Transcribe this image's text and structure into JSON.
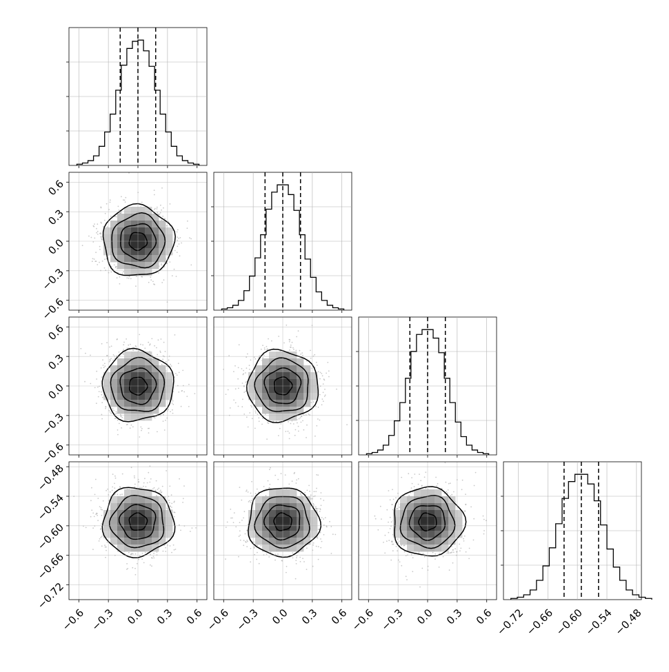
{
  "chart_data": {
    "type": "corner",
    "dimensions": 4,
    "grid": true,
    "histogram_style": "step",
    "quantile_lines": "dashed",
    "axes": [
      {
        "range": [
          -0.7,
          0.7
        ],
        "ticks": [
          -0.6,
          -0.3,
          0.0,
          0.3,
          0.6
        ],
        "tick_labels": [
          "−0.6",
          "−0.3",
          "0.0",
          "0.3",
          "0.6"
        ],
        "quantiles": [
          -0.18,
          0.0,
          0.18
        ],
        "mean": 0.0,
        "sd": 0.18
      },
      {
        "range": [
          -0.7,
          0.7
        ],
        "ticks": [
          -0.6,
          -0.3,
          0.0,
          0.3,
          0.6
        ],
        "tick_labels": [
          "−0.6",
          "−0.3",
          "0.0",
          "0.3",
          "0.6"
        ],
        "quantiles": [
          -0.18,
          0.0,
          0.18
        ],
        "mean": 0.0,
        "sd": 0.18
      },
      {
        "range": [
          -0.7,
          0.7
        ],
        "ticks": [
          -0.6,
          -0.3,
          0.0,
          0.3,
          0.6
        ],
        "tick_labels": [
          "−0.6",
          "−0.3",
          "0.0",
          "0.3",
          "0.6"
        ],
        "quantiles": [
          -0.18,
          0.0,
          0.18
        ],
        "mean": 0.0,
        "sd": 0.18
      },
      {
        "range": [
          -0.75,
          -0.47
        ],
        "ticks": [
          -0.72,
          -0.66,
          -0.6,
          -0.54,
          -0.48
        ],
        "tick_labels": [
          "−0.72",
          "−0.66",
          "−0.60",
          "−0.54",
          "−0.48"
        ],
        "quantiles": [
          -0.627,
          -0.592,
          -0.557
        ],
        "mean": -0.592,
        "sd": 0.035
      }
    ],
    "histograms": [
      {
        "variable": 0,
        "bin_edges_range": [
          -0.62,
          0.62
        ],
        "counts": [
          1,
          2,
          4,
          8,
          16,
          28,
          43,
          63,
          84,
          98,
          104,
          105,
          96,
          83,
          63,
          43,
          28,
          16,
          8,
          4,
          2,
          1
        ]
      },
      {
        "variable": 1,
        "bin_edges_range": [
          -0.62,
          0.62
        ],
        "counts": [
          1,
          2,
          4,
          8,
          16,
          28,
          43,
          62,
          83,
          97,
          103,
          103,
          95,
          82,
          62,
          42,
          27,
          15,
          8,
          4,
          2,
          1
        ]
      },
      {
        "variable": 2,
        "bin_edges_range": [
          -0.62,
          0.62
        ],
        "counts": [
          1,
          2,
          4,
          8,
          16,
          28,
          43,
          63,
          85,
          99,
          103,
          103,
          96,
          84,
          63,
          43,
          27,
          15,
          8,
          4,
          2,
          1
        ]
      },
      {
        "variable": 3,
        "bin_edges_range": [
          -0.735,
          -0.449
        ],
        "counts": [
          1,
          2,
          4,
          8,
          16,
          28,
          43,
          63,
          84,
          98,
          104,
          104,
          96,
          82,
          62,
          42,
          27,
          16,
          8,
          4,
          2,
          1
        ]
      }
    ],
    "density_panels": [
      {
        "x_var": 0,
        "y_var": 1,
        "center": [
          0.0,
          0.0
        ],
        "sd": [
          0.18,
          0.18
        ],
        "contour_levels_sigma": [
          0.5,
          1.0,
          1.5,
          2.0
        ]
      },
      {
        "x_var": 0,
        "y_var": 2,
        "center": [
          0.0,
          0.0
        ],
        "sd": [
          0.18,
          0.18
        ],
        "contour_levels_sigma": [
          0.5,
          1.0,
          1.5,
          2.0
        ]
      },
      {
        "x_var": 1,
        "y_var": 2,
        "center": [
          0.0,
          0.0
        ],
        "sd": [
          0.18,
          0.18
        ],
        "contour_levels_sigma": [
          0.5,
          1.0,
          1.5,
          2.0
        ]
      },
      {
        "x_var": 0,
        "y_var": 3,
        "center": [
          0.0,
          -0.592
        ],
        "sd": [
          0.18,
          0.035
        ],
        "contour_levels_sigma": [
          0.5,
          1.0,
          1.5,
          2.0
        ]
      },
      {
        "x_var": 1,
        "y_var": 3,
        "center": [
          0.0,
          -0.592
        ],
        "sd": [
          0.18,
          0.035
        ],
        "contour_levels_sigma": [
          0.5,
          1.0,
          1.5,
          2.0
        ]
      },
      {
        "x_var": 2,
        "y_var": 3,
        "center": [
          0.0,
          -0.592
        ],
        "sd": [
          0.18,
          0.035
        ],
        "contour_levels_sigma": [
          0.5,
          1.0,
          1.5,
          2.0
        ]
      }
    ],
    "colors": {
      "line": "#000000",
      "grid": "#b0b0b0",
      "points": "#9a9a9a",
      "density_dark": "#1a1a1a"
    }
  }
}
